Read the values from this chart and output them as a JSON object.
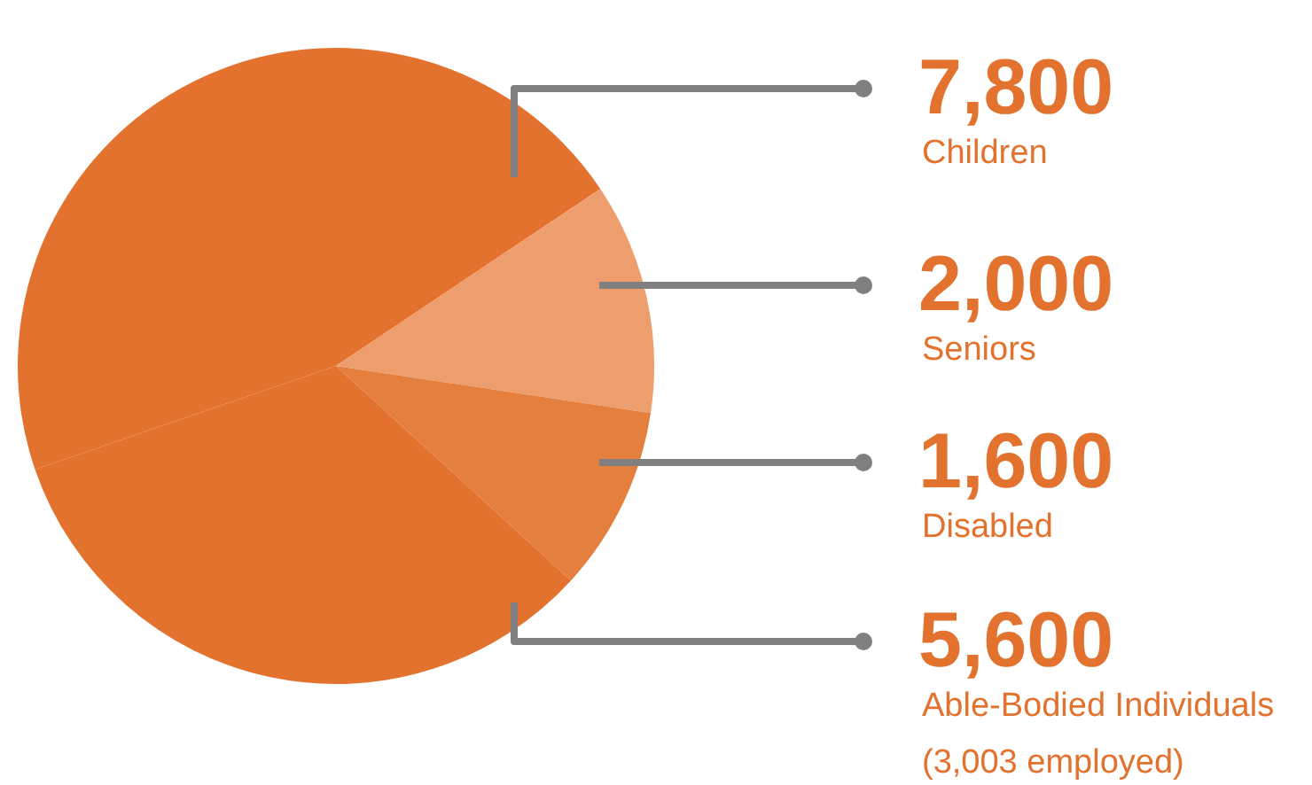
{
  "chart_data": {
    "type": "pie",
    "categories": [
      "Children",
      "Seniors",
      "Disabled",
      "Able-Bodied Individuals\n(3,003 employed)"
    ],
    "values": [
      7800,
      2000,
      1600,
      5600
    ],
    "value_labels": [
      "7,800",
      "2,000",
      "1,600",
      "5,600"
    ],
    "colors": [
      "#e2722e",
      "#ee9e6c",
      "#e57f3e",
      "#e2722e"
    ],
    "legend": false
  }
}
